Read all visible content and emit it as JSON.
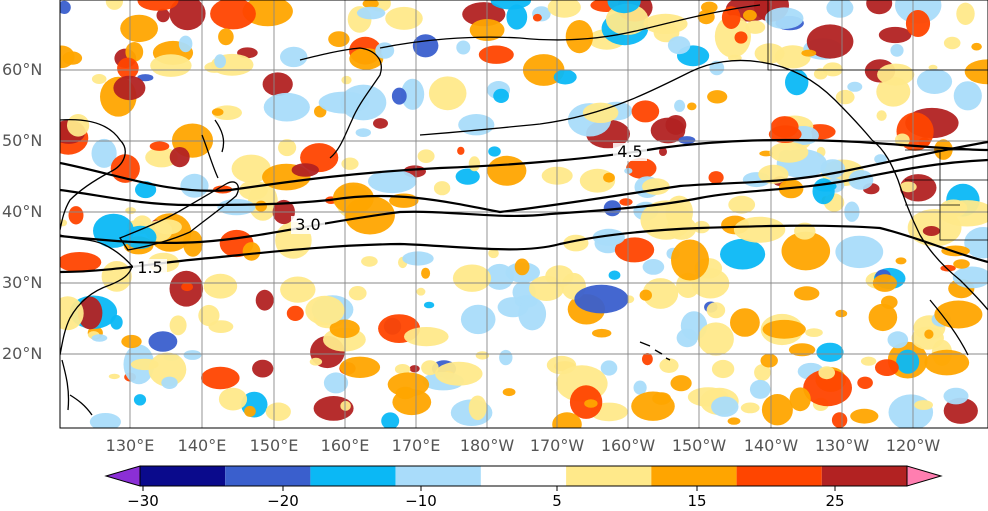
{
  "map": {
    "latitude_labels": [
      "60°N",
      "50°N",
      "40°N",
      "30°N",
      "20°N"
    ],
    "longitude_labels": [
      "130°E",
      "140°E",
      "150°E",
      "160°E",
      "170°E",
      "180°W",
      "170°W",
      "160°W",
      "150°W",
      "140°W",
      "130°W",
      "120°W"
    ],
    "contour_labels": [
      "4.5",
      "3.0",
      "1.5"
    ]
  },
  "colorbar": {
    "tick_labels": [
      "−30",
      "−20",
      "−10",
      "5",
      "15",
      "25"
    ],
    "colors": [
      "#8b2fd6",
      "#0a0a8c",
      "#3a5fcd",
      "#0bb8f5",
      "#a9dcfa",
      "#ffffff",
      "#ffe98a",
      "#ffa500",
      "#ff4500",
      "#b22222",
      "#ff7eb0"
    ]
  }
}
